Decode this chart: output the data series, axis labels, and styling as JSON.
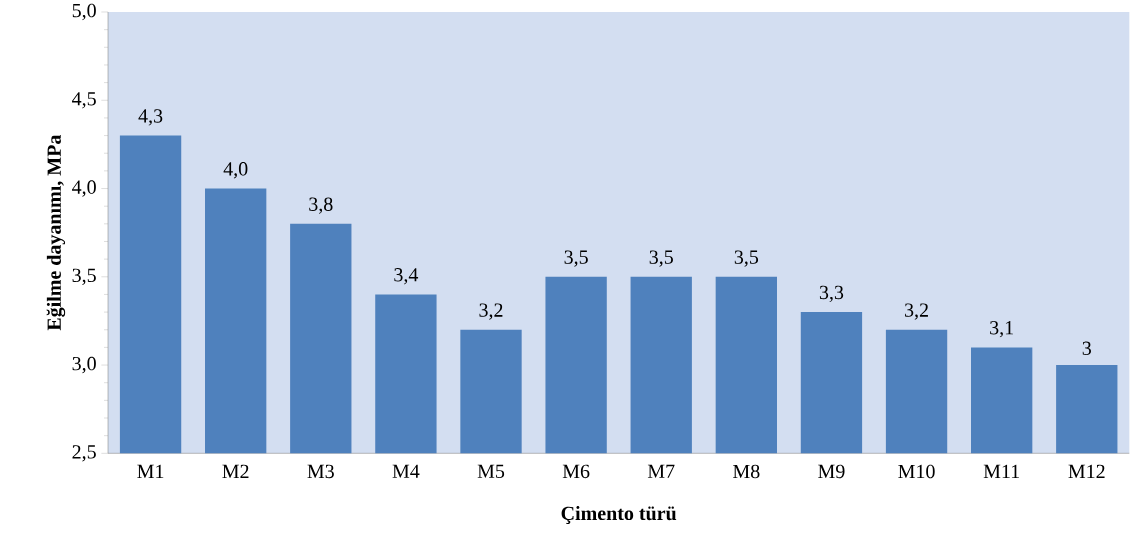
{
  "chart_data": {
    "type": "bar",
    "xlabel": "Çimento türü",
    "ylabel": "Eğilme dayanımı, MPa",
    "categories": [
      "M1",
      "M2",
      "M3",
      "M4",
      "M5",
      "M6",
      "M7",
      "M8",
      "M9",
      "M10",
      "M11",
      "M12"
    ],
    "values": [
      4.3,
      4.0,
      3.8,
      3.4,
      3.2,
      3.5,
      3.5,
      3.5,
      3.3,
      3.2,
      3.1,
      3.0
    ],
    "value_labels": [
      "4,3",
      "4,0",
      "3,8",
      "3,4",
      "3,2",
      "3,5",
      "3,5",
      "3,5",
      "3,3",
      "3,2",
      "3,1",
      "3"
    ],
    "color": "#4f81bd",
    "ylim": [
      2.5,
      5.0
    ],
    "yticks": [
      {
        "value": 2.5,
        "label": "2,5"
      },
      {
        "value": 3.0,
        "label": "3,0"
      },
      {
        "value": 3.5,
        "label": "3,5"
      },
      {
        "value": 4.0,
        "label": "4,0"
      },
      {
        "value": 4.5,
        "label": "4,5"
      },
      {
        "value": 5.0,
        "label": "5,0"
      }
    ],
    "grid": false
  }
}
